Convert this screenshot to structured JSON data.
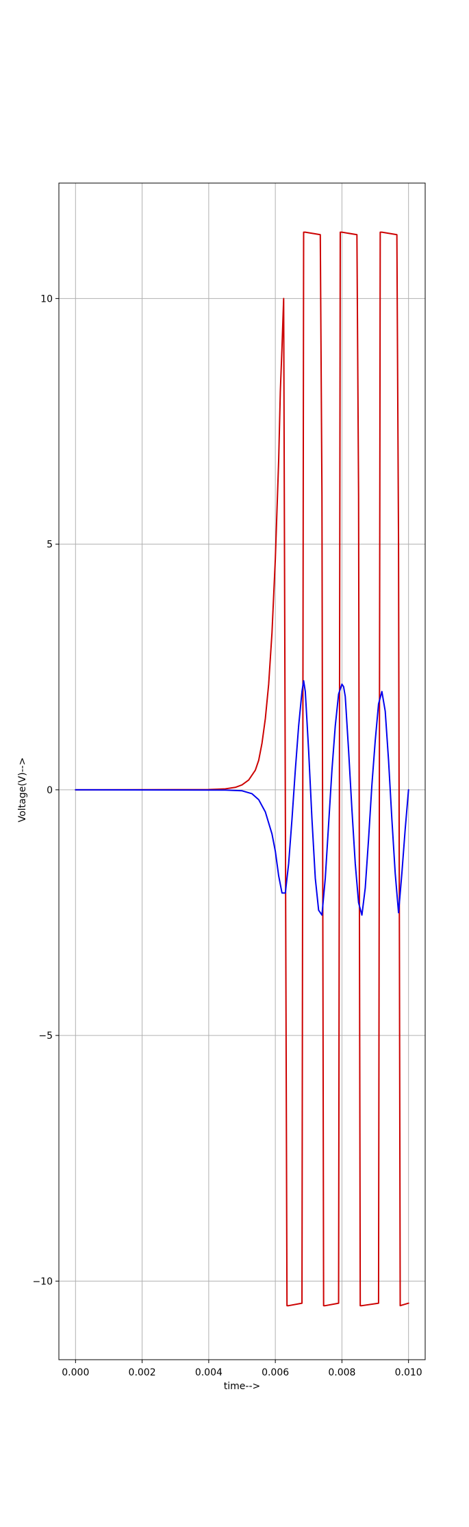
{
  "chart_data": {
    "type": "line",
    "xlabel": "time-->",
    "ylabel": "Voltage(V)-->",
    "xlim": [
      -0.0005,
      0.0105
    ],
    "ylim": [
      -11.6,
      12.35
    ],
    "xticks": [
      0.0,
      0.002,
      0.004,
      0.006,
      0.008,
      0.01
    ],
    "xtick_labels": [
      "0.000",
      "0.002",
      "0.004",
      "0.006",
      "0.008",
      "0.010"
    ],
    "yticks": [
      -10,
      -5,
      0,
      5,
      10
    ],
    "ytick_labels": [
      "−10",
      "−5",
      "0",
      "5",
      "10"
    ],
    "grid": true,
    "series": [
      {
        "color": "#cc0000",
        "x": [
          0.0,
          0.004,
          0.0045,
          0.0048,
          0.005,
          0.0052,
          0.0054,
          0.0055,
          0.0056,
          0.0057,
          0.0058,
          0.0059,
          0.006,
          0.0061,
          0.00615,
          0.0062,
          0.00625,
          0.00635,
          0.0064,
          0.0068,
          0.00685,
          0.0069,
          0.00735,
          0.0074,
          0.00745,
          0.0075,
          0.0079,
          0.00795,
          0.008,
          0.00845,
          0.0085,
          0.00855,
          0.0086,
          0.0091,
          0.00915,
          0.0092,
          0.00965,
          0.0097,
          0.00975,
          0.01
        ],
        "y": [
          0.0,
          0.005,
          0.02,
          0.05,
          0.1,
          0.2,
          0.4,
          0.6,
          0.95,
          1.45,
          2.15,
          3.2,
          4.7,
          6.7,
          8.1,
          9.0,
          10.0,
          -10.5,
          -10.5,
          -10.45,
          11.35,
          11.35,
          11.3,
          6.0,
          -10.5,
          -10.5,
          -10.45,
          11.35,
          11.35,
          11.3,
          6.0,
          -10.5,
          -10.5,
          -10.45,
          11.35,
          11.35,
          11.3,
          5.0,
          -10.5,
          -10.45
        ]
      },
      {
        "color": "#0000ee",
        "x": [
          0.0,
          0.0045,
          0.005,
          0.0053,
          0.0055,
          0.0057,
          0.0059,
          0.006,
          0.0061,
          0.0062,
          0.0063,
          0.0064,
          0.0065,
          0.0066,
          0.0067,
          0.0068,
          0.00685,
          0.0069,
          0.007,
          0.0071,
          0.0072,
          0.0073,
          0.0074,
          0.0075,
          0.0076,
          0.0077,
          0.0078,
          0.0079,
          0.008,
          0.00805,
          0.0081,
          0.0082,
          0.0083,
          0.0084,
          0.0085,
          0.0086,
          0.0087,
          0.0088,
          0.0089,
          0.009,
          0.0091,
          0.0092,
          0.0093,
          0.0094,
          0.0095,
          0.0096,
          0.0097,
          0.0098,
          0.0099,
          0.01
        ],
        "y": [
          0.0,
          -0.005,
          -0.02,
          -0.08,
          -0.2,
          -0.45,
          -0.9,
          -1.25,
          -1.75,
          -2.1,
          -2.1,
          -1.5,
          -0.6,
          0.4,
          1.3,
          2.0,
          2.22,
          2.0,
          0.8,
          -0.6,
          -1.8,
          -2.45,
          -2.55,
          -1.8,
          -0.7,
          0.4,
          1.3,
          1.95,
          2.15,
          2.1,
          1.9,
          0.8,
          -0.4,
          -1.5,
          -2.3,
          -2.55,
          -2.0,
          -1.0,
          0.1,
          1.0,
          1.75,
          2.0,
          1.6,
          0.6,
          -0.6,
          -1.7,
          -2.5,
          -1.7,
          -0.8,
          0.0
        ]
      }
    ]
  }
}
